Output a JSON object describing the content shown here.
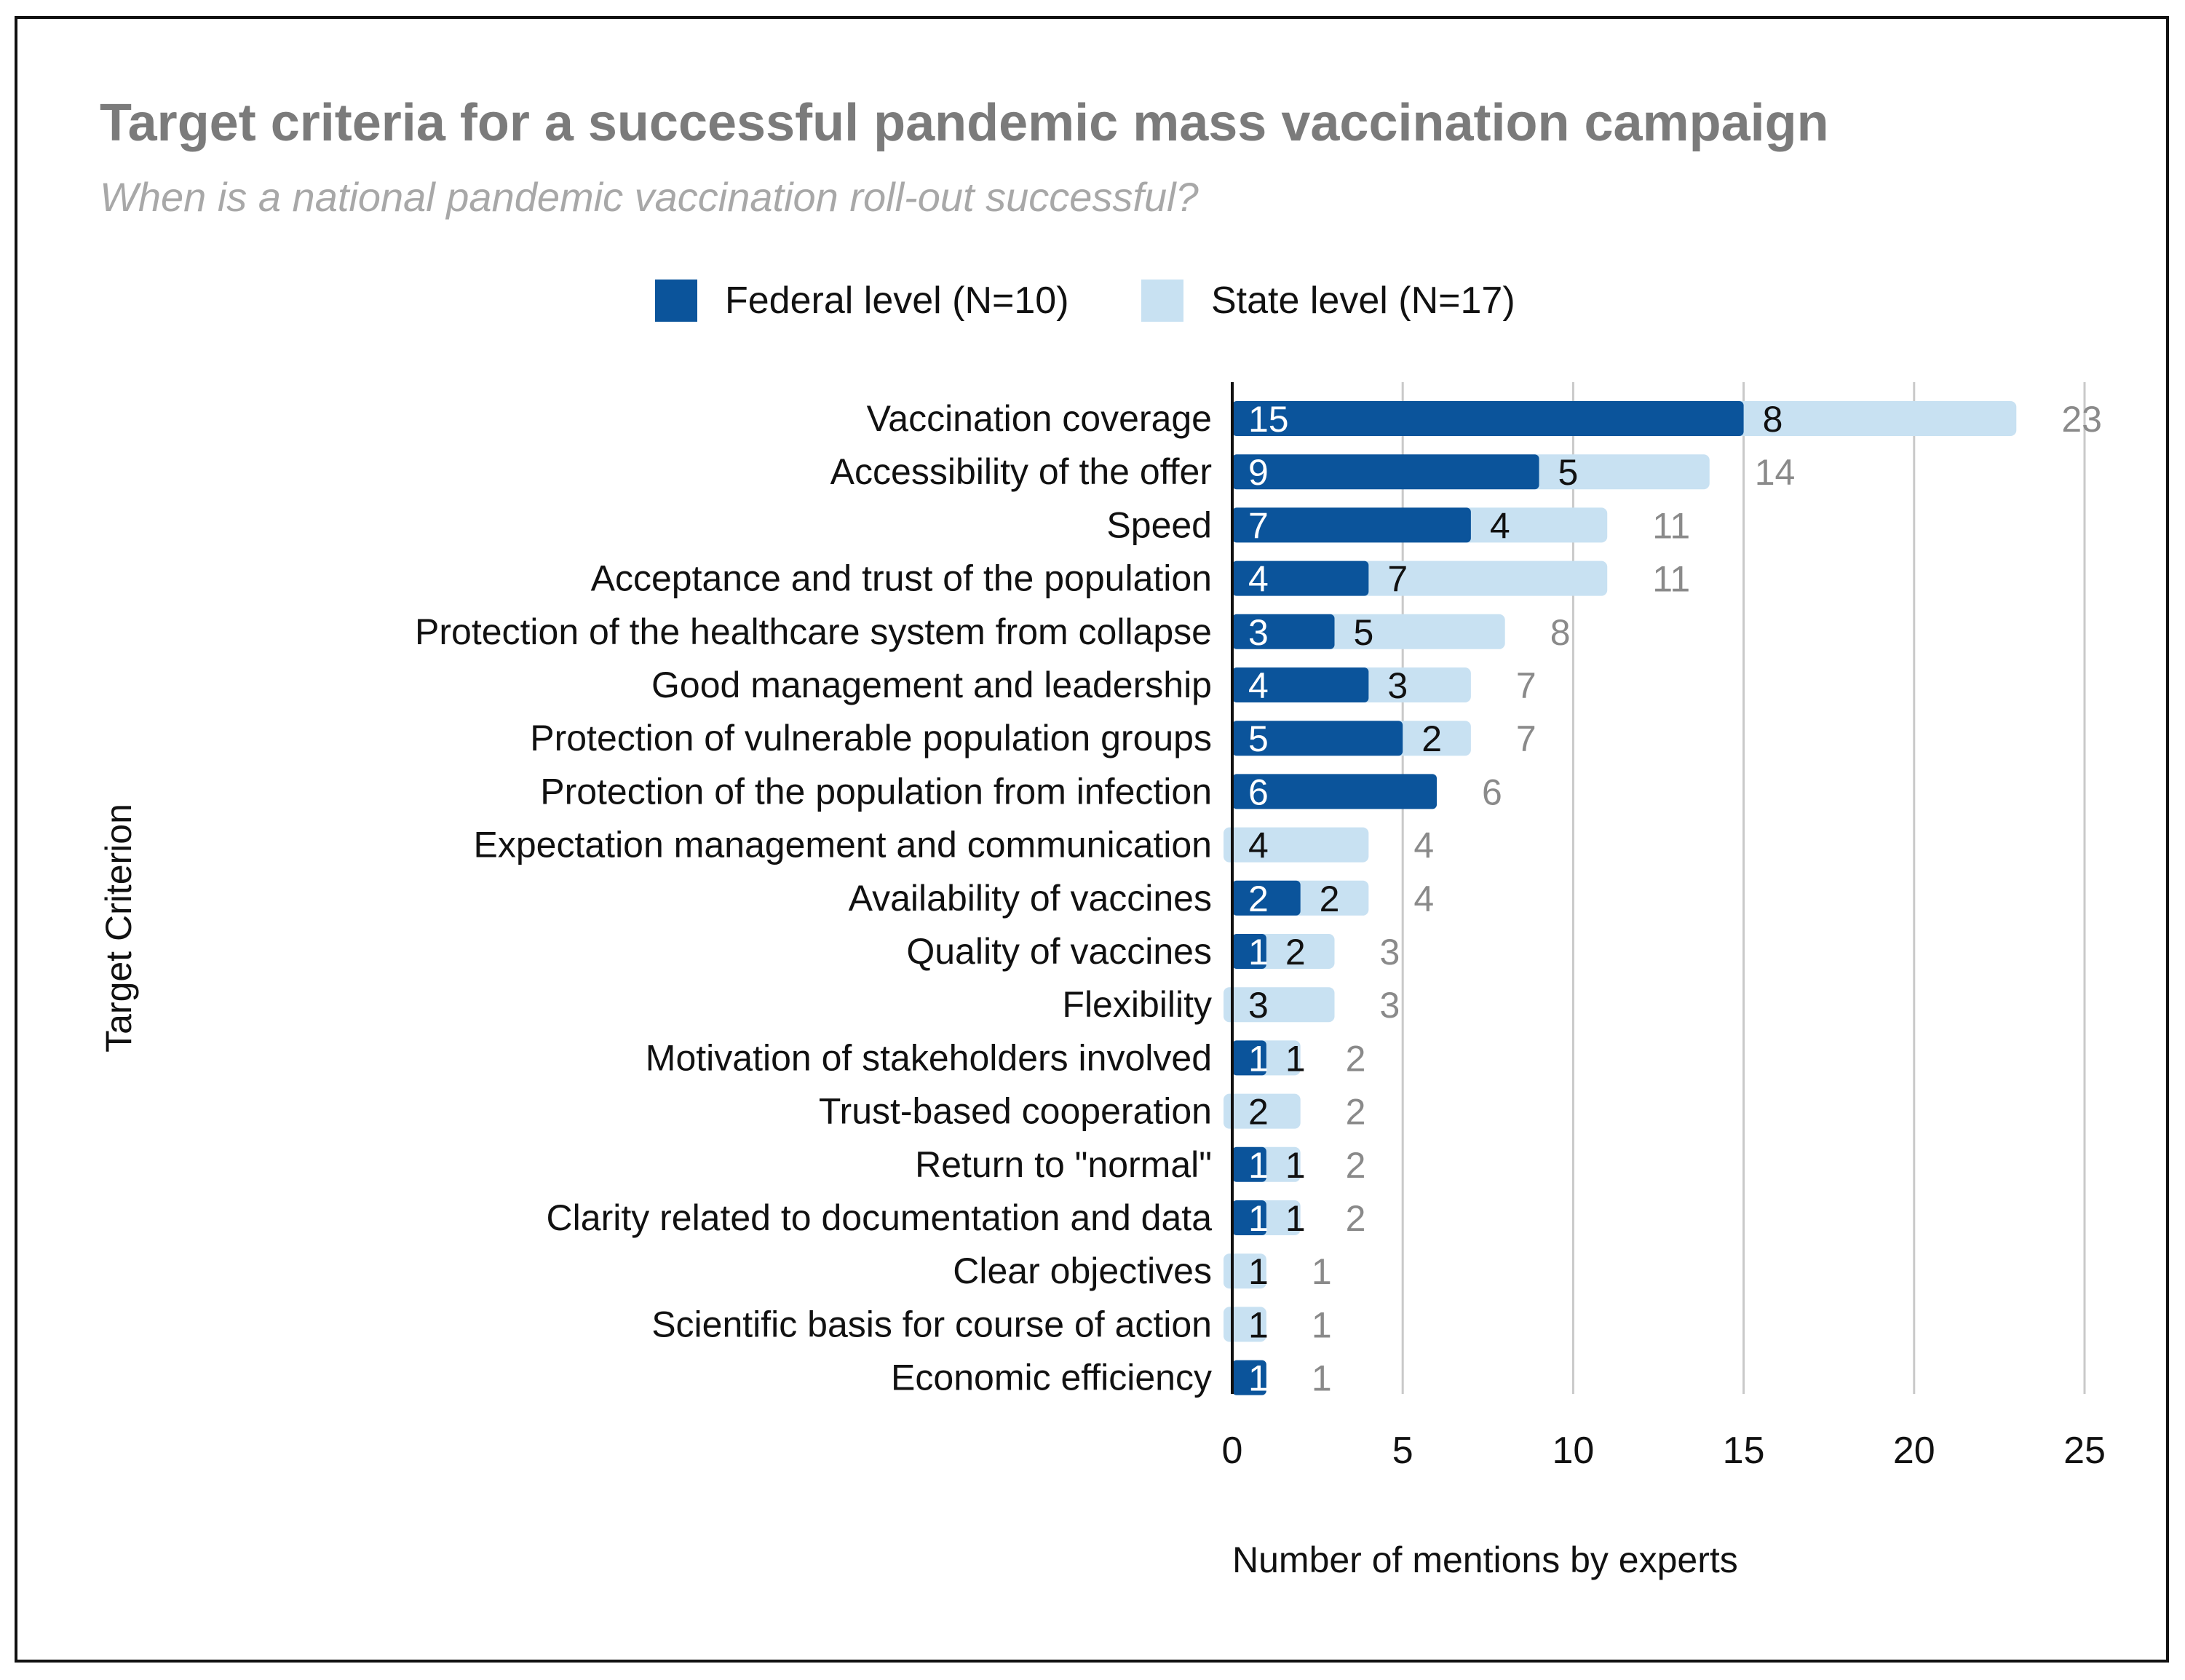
{
  "title": "Target criteria for a successful pandemic mass vaccination campaign",
  "subtitle": "When is a national pandemic vaccination roll-out successful?",
  "legend": {
    "federal": "Federal level (N=10)",
    "state": "State level (N=17)"
  },
  "colors": {
    "federal": "#0b549b",
    "state": "#c8e1f2",
    "grid": "#c9c9c9",
    "total": "#8a8a8a"
  },
  "chart_data": {
    "type": "bar",
    "orientation": "horizontal",
    "stacked": true,
    "title": "Target criteria for a successful pandemic mass vaccination campaign",
    "subtitle": "When is a national pandemic vaccination roll-out successful?",
    "xlabel": "Number of mentions by experts",
    "ylabel": "Target Criterion",
    "xlim": [
      0,
      25
    ],
    "xticks": [
      0,
      5,
      10,
      15,
      20,
      25
    ],
    "grid": true,
    "legend_position": "top-center",
    "categories": [
      "Vaccination coverage",
      "Accessibility of the offer",
      "Speed",
      "Acceptance and trust of the population",
      "Protection of the healthcare system from collapse",
      "Good management and leadership",
      "Protection of vulnerable population groups",
      "Protection of the population from infection",
      "Expectation management and communication",
      "Availability of vaccines",
      "Quality of vaccines",
      "Flexibility",
      "Motivation of stakeholders involved",
      "Trust-based cooperation",
      "Return to \"normal\"",
      "Clarity related to documentation and data",
      "Clear objectives",
      "Scientific basis for course of action",
      "Economic efficiency"
    ],
    "series": [
      {
        "name": "Federal level (N=10)",
        "values": [
          15,
          9,
          7,
          4,
          3,
          4,
          5,
          6,
          0,
          2,
          1,
          0,
          1,
          0,
          1,
          1,
          0,
          0,
          1
        ]
      },
      {
        "name": "State level (N=17)",
        "values": [
          8,
          5,
          4,
          7,
          5,
          3,
          2,
          0,
          4,
          2,
          2,
          3,
          1,
          2,
          1,
          1,
          1,
          1,
          0
        ]
      }
    ],
    "totals": [
      23,
      14,
      11,
      11,
      8,
      7,
      7,
      6,
      4,
      4,
      3,
      3,
      2,
      2,
      2,
      2,
      1,
      1,
      1
    ]
  }
}
